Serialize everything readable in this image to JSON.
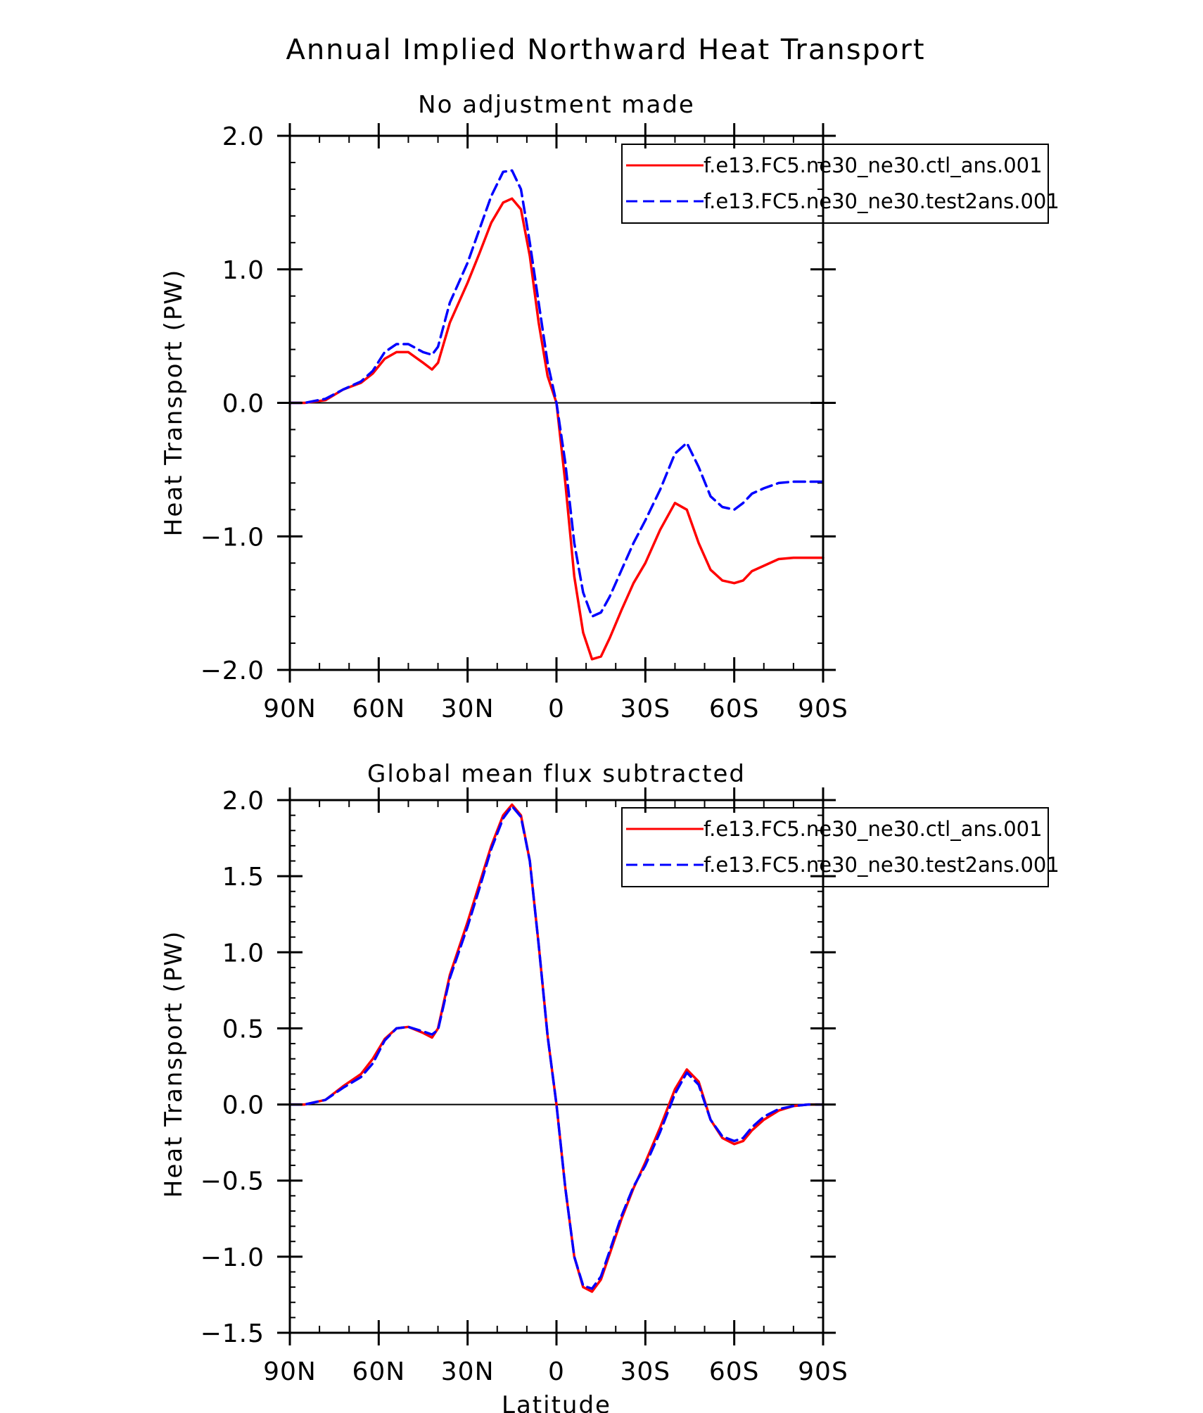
{
  "figure": {
    "title": "Annual Implied Northward Heat Transport",
    "colors": {
      "ctl": "#ff0000",
      "test": "#0000ff",
      "axis": "#000000"
    }
  },
  "chart_data": [
    {
      "type": "line",
      "title": "No adjustment made",
      "xlabel": "",
      "ylabel": "Heat Transport (PW)",
      "xlim": [
        90,
        -90
      ],
      "ylim": [
        -2.0,
        2.0
      ],
      "x_ticks": [
        {
          "value": 90,
          "label": "90N"
        },
        {
          "value": 60,
          "label": "60N"
        },
        {
          "value": 30,
          "label": "30N"
        },
        {
          "value": 0,
          "label": "0"
        },
        {
          "value": -30,
          "label": "30S"
        },
        {
          "value": -60,
          "label": "60S"
        },
        {
          "value": -90,
          "label": "90S"
        }
      ],
      "y_ticks": [
        {
          "value": 2.0,
          "label": "2.0"
        },
        {
          "value": 1.0,
          "label": "1.0"
        },
        {
          "value": 0.0,
          "label": "0.0"
        },
        {
          "value": -1.0,
          "label": "−1.0"
        },
        {
          "value": -2.0,
          "label": "−2.0"
        }
      ],
      "zero_line": true,
      "legend_position": "top-right",
      "x": [
        90,
        85,
        78,
        72,
        66,
        62,
        58,
        54,
        50,
        45,
        42,
        40,
        36,
        30,
        26,
        22,
        18,
        15,
        12,
        9,
        6,
        3,
        0,
        -3,
        -6,
        -9,
        -12,
        -15,
        -18,
        -22,
        -26,
        -30,
        -35,
        -40,
        -44,
        -48,
        -52,
        -56,
        -60,
        -63,
        -66,
        -70,
        -75,
        -80,
        -85,
        -90
      ],
      "series": [
        {
          "name": "f.e13.FC5.ne30_ne30.ctl_ans.001",
          "color": "#ff0000",
          "dash": "solid",
          "values": [
            0.0,
            0.0,
            0.02,
            0.1,
            0.15,
            0.22,
            0.33,
            0.38,
            0.38,
            0.3,
            0.25,
            0.3,
            0.6,
            0.9,
            1.12,
            1.35,
            1.5,
            1.53,
            1.45,
            1.1,
            0.6,
            0.2,
            0.0,
            -0.6,
            -1.3,
            -1.72,
            -1.92,
            -1.9,
            -1.76,
            -1.55,
            -1.35,
            -1.2,
            -0.95,
            -0.75,
            -0.8,
            -1.05,
            -1.25,
            -1.33,
            -1.35,
            -1.33,
            -1.26,
            -1.22,
            -1.17,
            -1.16,
            -1.16,
            -1.16
          ]
        },
        {
          "name": "f.e13.FC5.ne30_ne30.test2ans.001",
          "color": "#0000ff",
          "dash": "dashed",
          "values": [
            0.0,
            0.0,
            0.03,
            0.1,
            0.16,
            0.24,
            0.38,
            0.44,
            0.44,
            0.38,
            0.36,
            0.42,
            0.75,
            1.05,
            1.3,
            1.55,
            1.73,
            1.74,
            1.6,
            1.2,
            0.75,
            0.3,
            0.0,
            -0.45,
            -1.05,
            -1.42,
            -1.6,
            -1.57,
            -1.45,
            -1.25,
            -1.05,
            -0.88,
            -0.65,
            -0.38,
            -0.3,
            -0.48,
            -0.7,
            -0.78,
            -0.8,
            -0.75,
            -0.68,
            -0.64,
            -0.6,
            -0.59,
            -0.59,
            -0.59
          ]
        }
      ]
    },
    {
      "type": "line",
      "title": "Global mean flux subtracted",
      "xlabel": "Latitude",
      "ylabel": "Heat Transport (PW)",
      "xlim": [
        90,
        -90
      ],
      "ylim": [
        -1.5,
        2.0
      ],
      "x_ticks": [
        {
          "value": 90,
          "label": "90N"
        },
        {
          "value": 60,
          "label": "60N"
        },
        {
          "value": 30,
          "label": "30N"
        },
        {
          "value": 0,
          "label": "0"
        },
        {
          "value": -30,
          "label": "30S"
        },
        {
          "value": -60,
          "label": "60S"
        },
        {
          "value": -90,
          "label": "90S"
        }
      ],
      "y_ticks": [
        {
          "value": 2.0,
          "label": "2.0"
        },
        {
          "value": 1.5,
          "label": "1.5"
        },
        {
          "value": 1.0,
          "label": "1.0"
        },
        {
          "value": 0.5,
          "label": "0.5"
        },
        {
          "value": 0.0,
          "label": "0.0"
        },
        {
          "value": -0.5,
          "label": "−0.5"
        },
        {
          "value": -1.0,
          "label": "−1.0"
        },
        {
          "value": -1.5,
          "label": "−1.5"
        }
      ],
      "zero_line": true,
      "legend_position": "top-right",
      "x": [
        90,
        85,
        78,
        72,
        66,
        62,
        58,
        54,
        50,
        45,
        42,
        40,
        36,
        30,
        26,
        22,
        18,
        15,
        12,
        9,
        6,
        3,
        0,
        -3,
        -6,
        -9,
        -12,
        -15,
        -18,
        -22,
        -26,
        -30,
        -35,
        -40,
        -44,
        -48,
        -52,
        -56,
        -60,
        -63,
        -66,
        -70,
        -75,
        -80,
        -85,
        -90
      ],
      "series": [
        {
          "name": "f.e13.FC5.ne30_ne30.ctl_ans.001",
          "color": "#ff0000",
          "dash": "solid",
          "values": [
            0.0,
            0.0,
            0.03,
            0.12,
            0.2,
            0.3,
            0.43,
            0.5,
            0.51,
            0.47,
            0.44,
            0.5,
            0.85,
            1.2,
            1.45,
            1.7,
            1.9,
            1.97,
            1.9,
            1.6,
            1.05,
            0.45,
            0.0,
            -0.55,
            -1.0,
            -1.2,
            -1.23,
            -1.15,
            -0.98,
            -0.75,
            -0.55,
            -0.38,
            -0.15,
            0.1,
            0.23,
            0.15,
            -0.1,
            -0.22,
            -0.26,
            -0.24,
            -0.17,
            -0.1,
            -0.04,
            -0.01,
            0.0,
            0.0
          ]
        },
        {
          "name": "f.e13.FC5.ne30_ne30.test2ans.001",
          "color": "#0000ff",
          "dash": "dashed",
          "values": [
            0.0,
            0.0,
            0.03,
            0.11,
            0.18,
            0.27,
            0.42,
            0.5,
            0.51,
            0.48,
            0.46,
            0.49,
            0.83,
            1.17,
            1.42,
            1.68,
            1.88,
            1.96,
            1.89,
            1.6,
            1.05,
            0.45,
            0.0,
            -0.55,
            -1.0,
            -1.19,
            -1.21,
            -1.13,
            -0.96,
            -0.73,
            -0.54,
            -0.4,
            -0.18,
            0.07,
            0.21,
            0.13,
            -0.1,
            -0.21,
            -0.24,
            -0.22,
            -0.15,
            -0.08,
            -0.03,
            -0.01,
            0.0,
            0.0
          ]
        }
      ]
    }
  ]
}
